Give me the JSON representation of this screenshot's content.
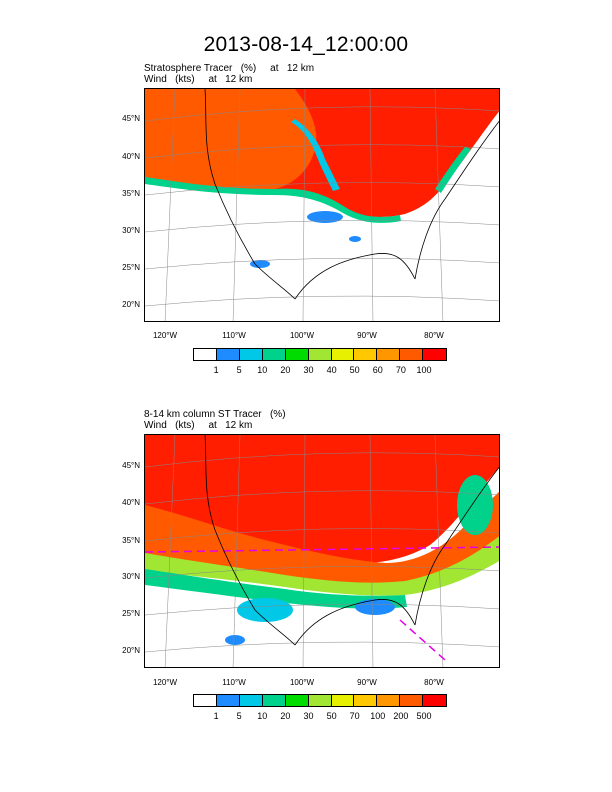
{
  "figure": {
    "title": "2013-08-14_12:00:00"
  },
  "panel_top": {
    "subtitle_line1": "Stratosphere Tracer   (%)     at   12 km",
    "subtitle_line2": "Wind   (kts)     at   12 km",
    "lat_labels": [
      "45°N",
      "40°N",
      "35°N",
      "30°N",
      "25°N",
      "20°N"
    ],
    "lon_labels": [
      "120°W",
      "110°W",
      "100°W",
      "90°W",
      "80°W"
    ],
    "colorbar": {
      "colors": [
        "#ffffff",
        "#1e8cff",
        "#00c8e6",
        "#00d28c",
        "#00dc00",
        "#a0e632",
        "#e6f000",
        "#ffc800",
        "#ff9600",
        "#ff5a00",
        "#ff0000"
      ],
      "labels": [
        "1",
        "5",
        "10",
        "20",
        "30",
        "40",
        "50",
        "60",
        "70",
        "100"
      ]
    },
    "field_colors": {
      "high": "#ff1e00",
      "mid": "#ff5a00",
      "band": "#00d28c",
      "low": "#1e8cff"
    }
  },
  "panel_bottom": {
    "subtitle_line1": "8-14 km column ST Tracer   (%)",
    "subtitle_line2": "Wind   (kts)     at   12 km",
    "lat_labels": [
      "45°N",
      "40°N",
      "35°N",
      "30°N",
      "25°N",
      "20°N"
    ],
    "lon_labels": [
      "120°W",
      "110°W",
      "100°W",
      "90°W",
      "80°W"
    ],
    "colorbar": {
      "colors": [
        "#ffffff",
        "#1e8cff",
        "#00c8e6",
        "#00d28c",
        "#00dc00",
        "#a0e632",
        "#e6f000",
        "#ffc800",
        "#ff9600",
        "#ff5a00",
        "#ff0000"
      ],
      "labels": [
        "1",
        "5",
        "10",
        "20",
        "30",
        "50",
        "70",
        "100",
        "200",
        "500"
      ]
    },
    "field_colors": {
      "high": "#ff1e00",
      "mid": "#ff5a00",
      "band": "#00d28c",
      "low": "#1e8cff"
    },
    "marker_color": "#e600e6"
  }
}
